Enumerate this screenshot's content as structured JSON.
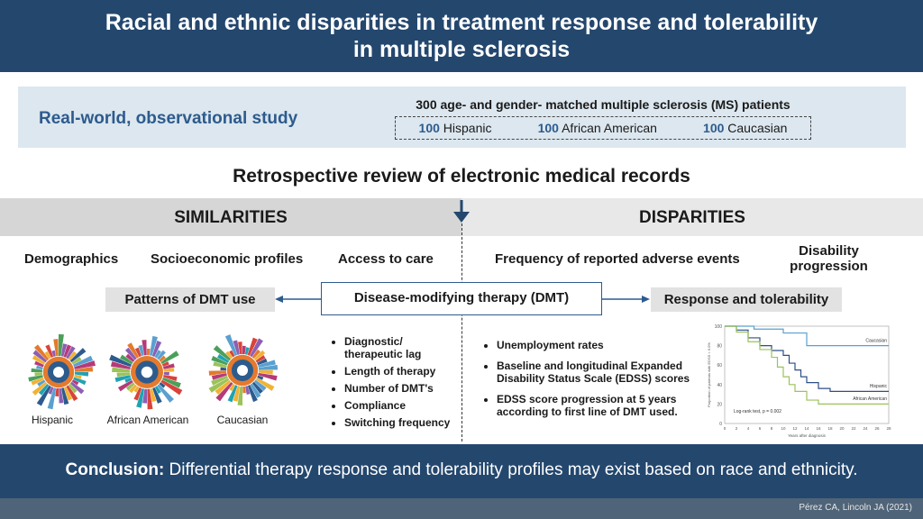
{
  "header": {
    "title_line1": "Racial and ethnic disparities in treatment response and tolerability",
    "title_line2": "in multiple sclerosis"
  },
  "study": {
    "label": "Real-world, observational study",
    "cohort_title": "300 age- and gender- matched multiple sclerosis (MS) patients",
    "groups": [
      {
        "count": "100",
        "name": "Hispanic"
      },
      {
        "count": "100",
        "name": "African American"
      },
      {
        "count": "100",
        "name": "Caucasian"
      }
    ]
  },
  "retrospective": "Retrospective review of electronic medical records",
  "similarities": {
    "title": "SIMILARITIES",
    "items": [
      "Demographics",
      "Socioeconomic profiles",
      "Access to care"
    ],
    "patterns": "Patterns of DMT use",
    "sunburst_labels": [
      "Hispanic",
      "African American",
      "Caucasian"
    ],
    "bullets": [
      "Diagnostic/ therapeutic lag",
      "Length of therapy",
      "Number of DMT's",
      "Compliance",
      "Switching frequency"
    ]
  },
  "disparities": {
    "title": "DISPARITIES",
    "items": [
      "Frequency of reported adverse events",
      "Disability progression"
    ],
    "response": "Response and tolerability",
    "bullets": [
      "Unemployment rates",
      "Baseline and longitudinal Expanded Disability Status Scale (EDSS) scores",
      "EDSS score progression at 5 years according to first line of DMT used."
    ]
  },
  "dmt": "Disease-modifying therapy (DMT)",
  "conclusion": {
    "lead": "Conclusion:",
    "text": " Differential therapy response and tolerability profiles may exist based on race and ethnicity."
  },
  "citation": "Pérez CA, Lincoln JA (2021)",
  "chart_data": {
    "type": "line",
    "ylabel": "Proportion of patients with EDSS < 6.0%",
    "xlabel": "Years after diagnosis",
    "annotation": "Log-rank test, p = 0.002",
    "y_ticks": [
      "0",
      "20",
      "40",
      "60",
      "80",
      "100"
    ],
    "x_ticks": [
      "0",
      "2",
      "4",
      "6",
      "8",
      "10",
      "12",
      "14",
      "16",
      "18",
      "20",
      "22",
      "24",
      "26",
      "28"
    ],
    "ylim": [
      0,
      100
    ],
    "xlim": [
      0,
      28
    ],
    "series": [
      {
        "name": "Caucasian",
        "color": "#5aa0d0",
        "x": [
          0,
          4,
          5,
          8,
          10,
          12,
          14,
          16,
          28
        ],
        "y": [
          100,
          100,
          97,
          97,
          93,
          93,
          80,
          80,
          80
        ]
      },
      {
        "name": "Hispanic",
        "color": "#2d4f86",
        "x": [
          0,
          2,
          4,
          6,
          8,
          10,
          11,
          12,
          13,
          14,
          16,
          18,
          28
        ],
        "y": [
          100,
          96,
          88,
          80,
          75,
          70,
          62,
          55,
          48,
          42,
          36,
          33,
          33
        ]
      },
      {
        "name": "African American",
        "color": "#9cc25a",
        "x": [
          0,
          2,
          4,
          6,
          8,
          9,
          10,
          11,
          12,
          14,
          16,
          28
        ],
        "y": [
          100,
          94,
          84,
          76,
          68,
          58,
          48,
          40,
          33,
          24,
          20,
          20
        ]
      }
    ]
  }
}
